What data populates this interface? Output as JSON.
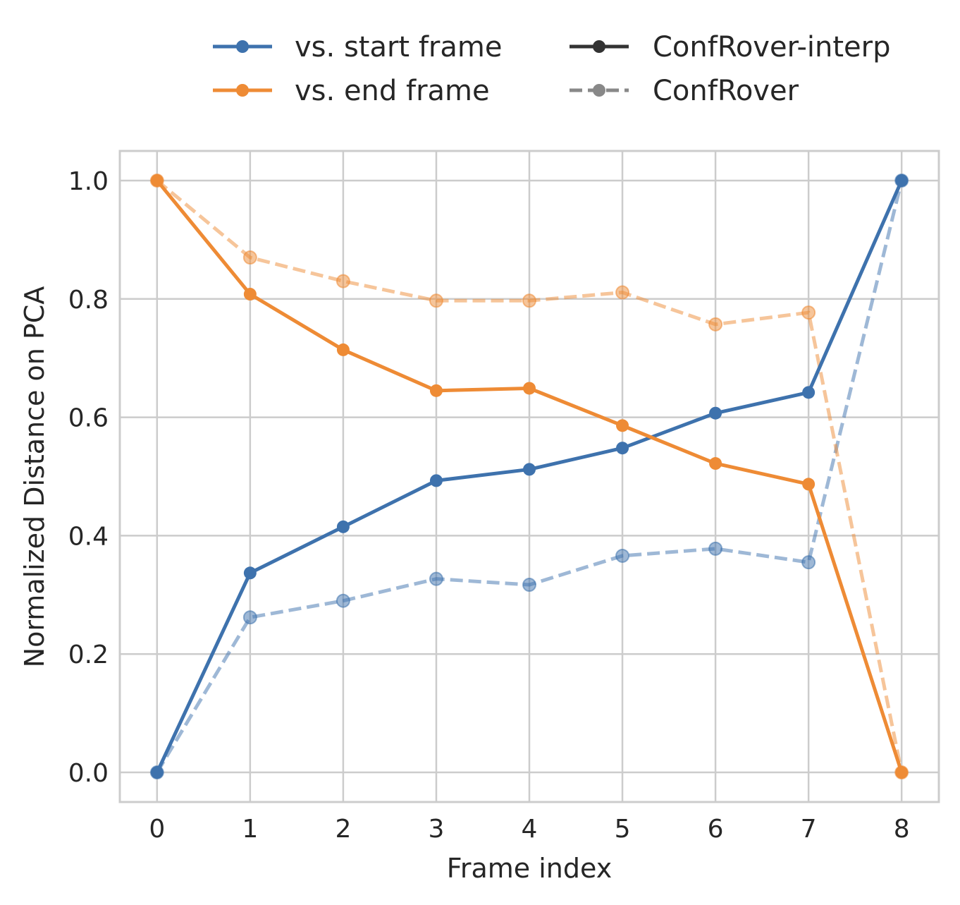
{
  "chart_data": {
    "type": "line",
    "xlabel": "Frame index",
    "ylabel": "Normalized Distance on PCA",
    "x": [
      0,
      1,
      2,
      3,
      4,
      5,
      6,
      7,
      8
    ],
    "xticks": [
      "0",
      "1",
      "2",
      "3",
      "4",
      "5",
      "6",
      "7",
      "8"
    ],
    "yticks": [
      "0.0",
      "0.2",
      "0.4",
      "0.6",
      "0.8",
      "1.0"
    ],
    "xlim": [
      -0.4,
      8.4
    ],
    "ylim": [
      -0.05,
      1.05
    ],
    "grid": true,
    "legend_position": "top",
    "legend": {
      "colors": [
        "vs. start frame",
        "vs. end frame"
      ],
      "styles": [
        "ConfRover-interp",
        "ConfRover"
      ]
    },
    "series": [
      {
        "name": "vs. start frame",
        "method": "ConfRover-interp",
        "color": "#3e72ad",
        "style": "solid",
        "values": [
          0.0,
          0.337,
          0.415,
          0.493,
          0.512,
          0.548,
          0.607,
          0.642,
          1.0
        ]
      },
      {
        "name": "vs. end frame",
        "method": "ConfRover-interp",
        "color": "#ee8b35",
        "style": "solid",
        "values": [
          1.0,
          0.808,
          0.714,
          0.645,
          0.649,
          0.586,
          0.522,
          0.487,
          0.0
        ]
      },
      {
        "name": "vs. start frame",
        "method": "ConfRover",
        "color": "#3e72ad",
        "style": "dashed",
        "values": [
          0.0,
          0.262,
          0.29,
          0.327,
          0.317,
          0.366,
          0.378,
          0.355,
          1.0
        ]
      },
      {
        "name": "vs. end frame",
        "method": "ConfRover",
        "color": "#ee8b35",
        "style": "dashed",
        "values": [
          1.0,
          0.87,
          0.83,
          0.797,
          0.797,
          0.811,
          0.757,
          0.777,
          0.0
        ]
      }
    ],
    "legend_sample_colors": {
      "solid": "#333333",
      "dashed": "#888888"
    }
  }
}
